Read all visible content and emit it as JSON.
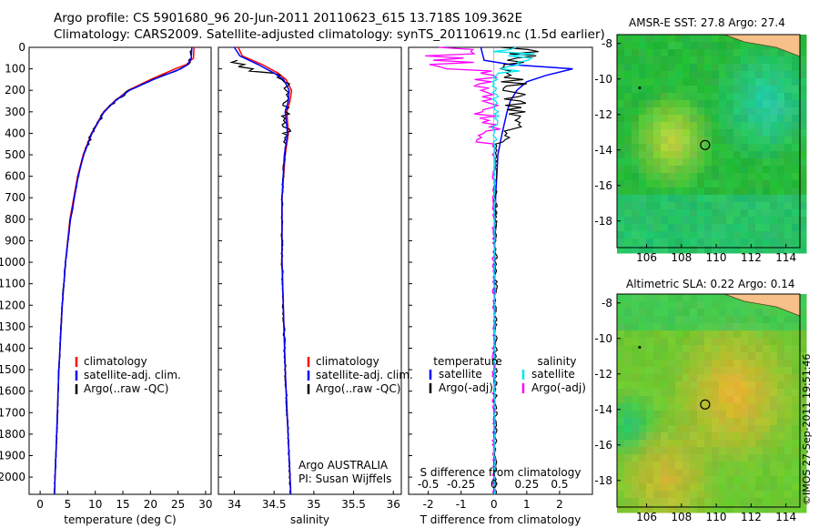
{
  "header": {
    "line1": "Argo profile: CS 5901680_96 20-Jun-2011 20110623_615 13.718S 109.362E",
    "line2": "Climatology: CARS2009. Satellite-adjusted climatology: synTS_20110619.nc (1.5d earlier)"
  },
  "colors": {
    "climatology": "#ff0000",
    "satellite": "#0000ff",
    "argo": "#000000",
    "sal_satellite": "#00e5ee",
    "sal_argo": "#ff00ff",
    "ocean_green": "#22b84a",
    "land": "#f5c08a"
  },
  "chart_data": [
    {
      "type": "line",
      "panel": "temperature",
      "xlabel": "temperature (deg C)",
      "ylabel": "",
      "xlim": [
        -2,
        31
      ],
      "ylim": [
        2080,
        0
      ],
      "xticks": [
        0,
        5,
        10,
        15,
        20,
        25,
        30
      ],
      "yticks": [
        0,
        100,
        200,
        300,
        400,
        500,
        600,
        700,
        800,
        900,
        1000,
        1100,
        1200,
        1300,
        1400,
        1500,
        1600,
        1700,
        1800,
        1900,
        2000
      ],
      "legend": [
        "climatology",
        "satellite-adj. clim.",
        "Argo(..raw -QC)"
      ],
      "series": [
        {
          "name": "climatology",
          "depth": [
            0,
            50,
            80,
            100,
            150,
            200,
            250,
            300,
            400,
            500,
            600,
            800,
            1000,
            1200,
            1500,
            1800,
            2000,
            2080
          ],
          "values": [
            27.9,
            27.8,
            26.5,
            24.5,
            20,
            16,
            13.5,
            11.5,
            9.3,
            7.8,
            6.8,
            5.4,
            4.6,
            4.0,
            3.4,
            3.0,
            2.7,
            2.6
          ]
        },
        {
          "name": "satellite-adj. clim.",
          "depth": [
            0,
            50,
            80,
            100,
            150,
            200,
            250,
            300,
            400,
            500,
            600,
            800,
            1000,
            1200,
            1500,
            1800,
            2000,
            2080
          ],
          "values": [
            27.5,
            27.4,
            26.8,
            25.5,
            20.5,
            16.2,
            13.6,
            11.6,
            9.4,
            7.9,
            6.9,
            5.5,
            4.6,
            4.0,
            3.4,
            3.0,
            2.7,
            2.6
          ]
        }
      ]
    },
    {
      "type": "line",
      "panel": "salinity",
      "xlabel": "salinity",
      "ylabel": "",
      "xlim": [
        33.8,
        36.1
      ],
      "ylim": [
        2080,
        0
      ],
      "xticks": [
        34,
        34.5,
        35,
        35.5,
        36
      ],
      "legend": [
        "climatology",
        "satellite-adj. clim.",
        "Argo(..raw -QC)"
      ],
      "annotations": [
        "Argo AUSTRALIA",
        "PI: Susan Wijffels"
      ],
      "series": [
        {
          "name": "climatology",
          "depth": [
            0,
            40,
            80,
            120,
            150,
            200,
            250,
            300,
            400,
            500,
            700,
            1000,
            1500,
            2000,
            2080
          ],
          "values": [
            34.05,
            34.1,
            34.35,
            34.55,
            34.65,
            34.72,
            34.7,
            34.66,
            34.68,
            34.64,
            34.6,
            34.6,
            34.64,
            34.7,
            34.71
          ]
        },
        {
          "name": "satellite-adj. clim.",
          "depth": [
            0,
            40,
            80,
            120,
            150,
            200,
            250,
            300,
            400,
            500,
            700,
            1000,
            1500,
            2000,
            2080
          ],
          "values": [
            34.0,
            34.07,
            34.3,
            34.5,
            34.62,
            34.69,
            34.68,
            34.64,
            34.67,
            34.63,
            34.6,
            34.6,
            34.64,
            34.7,
            34.71
          ]
        }
      ]
    },
    {
      "type": "line",
      "panel": "difference",
      "xlabel": "T difference from climatology",
      "xlabel_top": "S difference from climatology",
      "xlim": [
        -2.6,
        3.0
      ],
      "ylim": [
        2080,
        0
      ],
      "xticks": [
        -2,
        -1,
        0,
        1,
        2
      ],
      "xticks_top": [
        -0.5,
        -0.25,
        0,
        0.25,
        0.5
      ],
      "legend_titles": [
        "temperature",
        "salinity"
      ],
      "legend": [
        "satellite",
        "Argo(-adj)",
        "satellite",
        "Argo(-adj)"
      ],
      "series": [
        {
          "name": "satellite",
          "depth": [
            0,
            60,
            80,
            100,
            130,
            160,
            200,
            250,
            300,
            400,
            500,
            700,
            1000,
            1500,
            2000,
            2080
          ],
          "values": [
            -0.4,
            -0.3,
            0.5,
            2.4,
            1.6,
            1.0,
            0.7,
            0.5,
            0.4,
            0.25,
            0.12,
            0.05,
            0.02,
            0.01,
            0.0,
            0.0
          ]
        }
      ]
    }
  ],
  "maps": [
    {
      "title": "AMSR-E SST: 27.8 Argo: 27.4",
      "xticks": [
        "106",
        "108",
        "110",
        "112",
        "114"
      ],
      "yticks": [
        "-8",
        "-10",
        "-12",
        "-14",
        "-16",
        "-18"
      ],
      "lon": [
        104.3,
        114.8
      ],
      "lat": [
        -7.5,
        -19.5
      ],
      "float_lon": 109.36,
      "float_lat": -13.72
    },
    {
      "title": "Altimetric SLA: 0.22 Argo: 0.14",
      "xticks": [
        "106",
        "108",
        "110",
        "112",
        "114"
      ],
      "yticks": [
        "-8",
        "-10",
        "-12",
        "-14",
        "-16",
        "-18"
      ],
      "lon": [
        104.3,
        114.8
      ],
      "lat": [
        -7.5,
        -19.5
      ],
      "float_lon": 109.36,
      "float_lat": -13.72
    }
  ],
  "credit": "©IMOS 27-Sep-2011 19:51:46"
}
